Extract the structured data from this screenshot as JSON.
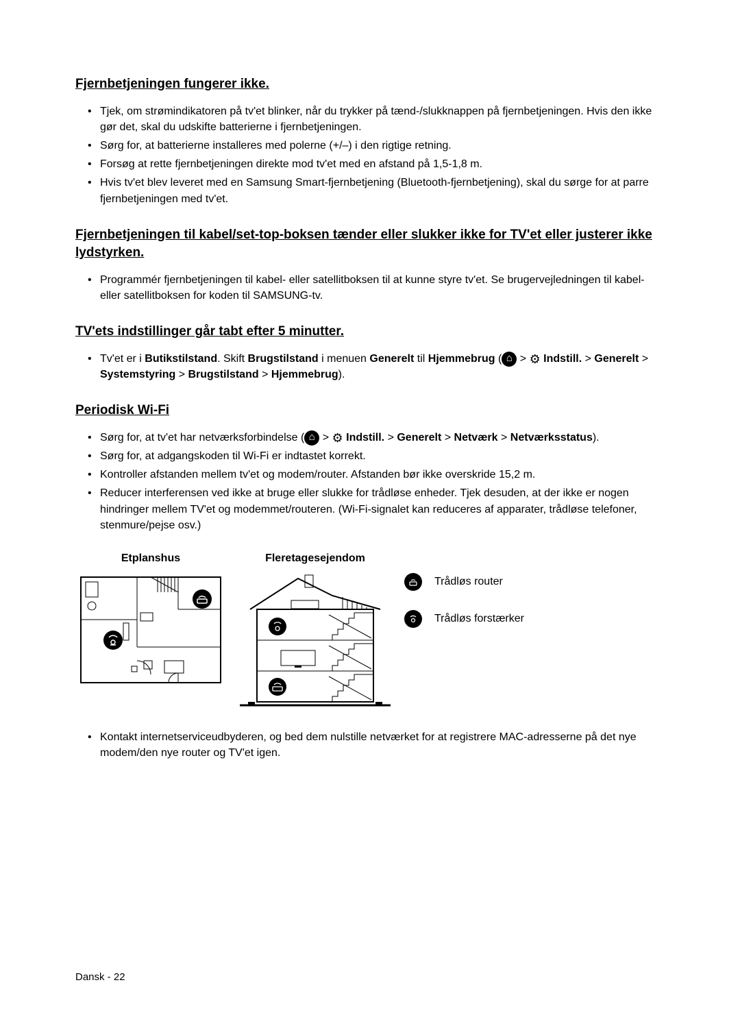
{
  "sections": [
    {
      "heading": "Fjernbetjeningen fungerer ikke.",
      "items": [
        [
          {
            "t": "Tjek, om strømindikatoren på tv'et blinker, når du trykker på tænd-/slukknappen på fjernbetjeningen. Hvis den ikke gør det, skal du udskifte batterierne i fjernbetjeningen."
          }
        ],
        [
          {
            "t": "Sørg for, at batterierne installeres med polerne (+/–) i den rigtige retning."
          }
        ],
        [
          {
            "t": "Forsøg at rette fjernbetjeningen direkte mod tv'et med en afstand på 1,5-1,8 m."
          }
        ],
        [
          {
            "t": "Hvis tv'et blev leveret med en Samsung Smart-fjernbetjening (Bluetooth-fjernbetjening), skal du sørge for at parre fjernbetjeningen med tv'et."
          }
        ]
      ]
    },
    {
      "heading": "Fjernbetjeningen til kabel/set-top-boksen tænder eller slukker ikke for TV'et eller justerer ikke lydstyrken.",
      "items": [
        [
          {
            "t": "Programmér fjernbetjeningen til kabel- eller satellitboksen til at kunne styre tv'et. Se brugervejledningen til kabel- eller satellitboksen for koden til SAMSUNG-tv."
          }
        ]
      ]
    },
    {
      "heading": "TV'ets indstillinger går tabt efter 5 minutter.",
      "items": [
        [
          {
            "t": "Tv'et er i "
          },
          {
            "t": "Butikstilstand",
            "b": true
          },
          {
            "t": ". Skift "
          },
          {
            "t": "Brugstilstand",
            "b": true
          },
          {
            "t": " i menuen "
          },
          {
            "t": "Generelt",
            "b": true
          },
          {
            "t": " til "
          },
          {
            "t": "Hjemmebrug",
            "b": true
          },
          {
            "t": " ("
          },
          {
            "icon": "home"
          },
          {
            "t": " > "
          },
          {
            "icon": "gear"
          },
          {
            "t": " "
          },
          {
            "t": "Indstill.",
            "b": true
          },
          {
            "t": " > "
          },
          {
            "t": "Generelt",
            "b": true
          },
          {
            "t": " > "
          },
          {
            "t": "Systemstyring",
            "b": true
          },
          {
            "t": " > "
          },
          {
            "t": "Brugstilstand",
            "b": true
          },
          {
            "t": " > "
          },
          {
            "t": "Hjemmebrug",
            "b": true
          },
          {
            "t": ")."
          }
        ]
      ]
    },
    {
      "heading": "Periodisk Wi-Fi",
      "items": [
        [
          {
            "t": "Sørg for, at tv'et har netværksforbindelse ("
          },
          {
            "icon": "home"
          },
          {
            "t": " > "
          },
          {
            "icon": "gear"
          },
          {
            "t": " "
          },
          {
            "t": "Indstill.",
            "b": true
          },
          {
            "t": " > "
          },
          {
            "t": "Generelt",
            "b": true
          },
          {
            "t": " > "
          },
          {
            "t": "Netværk",
            "b": true
          },
          {
            "t": " > "
          },
          {
            "t": "Netværksstatus",
            "b": true
          },
          {
            "t": ")."
          }
        ],
        [
          {
            "t": "Sørg for, at adgangskoden til Wi-Fi er indtastet korrekt."
          }
        ],
        [
          {
            "t": "Kontroller afstanden mellem tv'et og modem/router. Afstanden bør ikke overskride 15,2 m."
          }
        ],
        [
          {
            "t": "Reducer interferensen ved ikke at bruge eller slukke for trådløse enheder. Tjek desuden, at der ikke er nogen hindringer mellem TV'et og modemmet/routeren. (Wi-Fi-signalet kan reduceres af apparater, trådløse telefoner, stenmure/pejse osv.)"
          }
        ]
      ]
    }
  ],
  "diagrams": {
    "col1_title": "Etplanshus",
    "col2_title": "Fleretagesejendom",
    "legend": [
      {
        "icon": "router",
        "label": "Trådløs router"
      },
      {
        "icon": "repeater",
        "label": "Trådløs forstærker"
      }
    ]
  },
  "after_diagram_items": [
    [
      {
        "t": "Kontakt internetserviceudbyderen, og bed dem nulstille netværket for at registrere MAC-adresserne på det nye modem/den nye router og TV'et igen."
      }
    ]
  ],
  "footer": "Dansk - 22",
  "colors": {
    "text": "#000000",
    "bg": "#ffffff",
    "stroke": "#000000"
  }
}
